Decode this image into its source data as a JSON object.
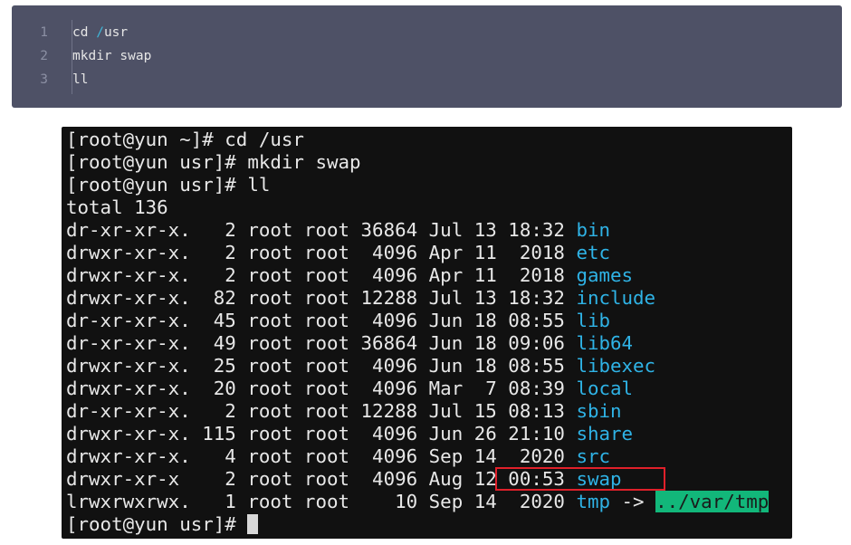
{
  "code_block": {
    "lines": [
      {
        "num": "1",
        "pre": "cd ",
        "slash": "/",
        "post": "usr"
      },
      {
        "num": "2",
        "pre": "mkdir swap",
        "slash": "",
        "post": ""
      },
      {
        "num": "3",
        "pre": "ll",
        "slash": "",
        "post": ""
      }
    ]
  },
  "terminal": {
    "commands": [
      "[root@yun ~]# cd /usr",
      "[root@yun usr]# mkdir swap",
      "[root@yun usr]# ll"
    ],
    "total": "total 136",
    "entries": [
      {
        "meta": "dr-xr-xr-x.   2 root root 36864 Jul 13 18:32 ",
        "name": "bin"
      },
      {
        "meta": "drwxr-xr-x.   2 root root  4096 Apr 11  2018 ",
        "name": "etc"
      },
      {
        "meta": "drwxr-xr-x.   2 root root  4096 Apr 11  2018 ",
        "name": "games"
      },
      {
        "meta": "drwxr-xr-x.  82 root root 12288 Jul 13 18:32 ",
        "name": "include"
      },
      {
        "meta": "dr-xr-xr-x.  45 root root  4096 Jun 18 08:55 ",
        "name": "lib"
      },
      {
        "meta": "dr-xr-xr-x.  49 root root 36864 Jun 18 09:06 ",
        "name": "lib64"
      },
      {
        "meta": "drwxr-xr-x.  25 root root  4096 Jun 18 08:55 ",
        "name": "libexec"
      },
      {
        "meta": "drwxr-xr-x.  20 root root  4096 Mar  7 08:39 ",
        "name": "local"
      },
      {
        "meta": "dr-xr-xr-x.   2 root root 12288 Jul 15 08:13 ",
        "name": "sbin"
      },
      {
        "meta": "drwxr-xr-x. 115 root root  4096 Jun 26 21:10 ",
        "name": "share"
      },
      {
        "meta": "drwxr-xr-x.   4 root root  4096 Sep 14  2020 ",
        "name": "src"
      },
      {
        "meta": "drwxr-xr-x    2 root root  4096 Aug 12 00:53 ",
        "name": "swap"
      }
    ],
    "symlink": {
      "meta": "lrwxrwxrwx.   1 root root    10 Sep 14  2020 ",
      "name": "tmp",
      "arrow": " -> ",
      "target": "../var/tmp"
    },
    "prompt": "[root@yun usr]# ",
    "highlight_color": "#e0202a",
    "dir_color": "#2fb3e6",
    "symlink_target_bg": "#12b77a"
  }
}
